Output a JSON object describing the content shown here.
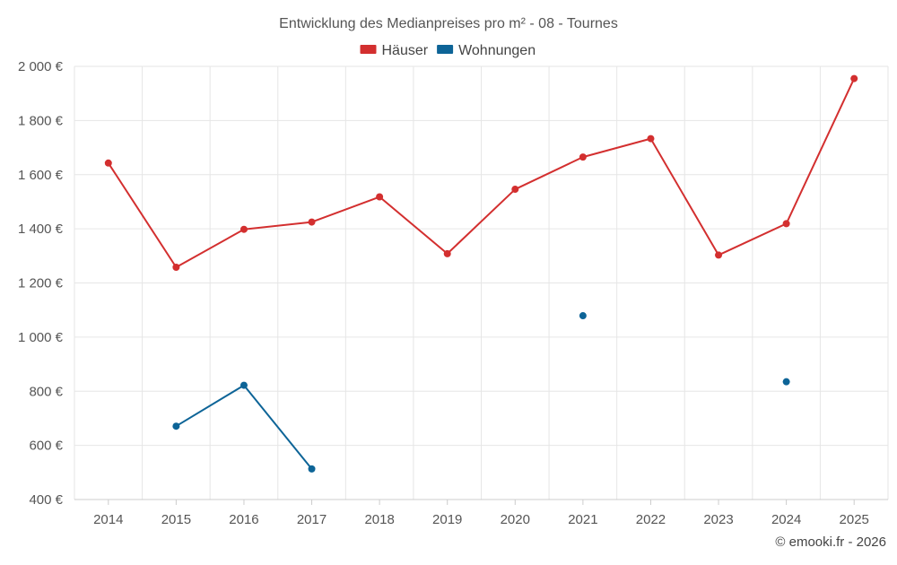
{
  "chart_data": {
    "type": "line",
    "title": "Entwicklung des Medianpreises pro m² - 08 - Tournes",
    "categories": [
      "2014",
      "2015",
      "2016",
      "2017",
      "2018",
      "2019",
      "2020",
      "2021",
      "2022",
      "2023",
      "2024",
      "2025"
    ],
    "ylim": [
      400,
      2000
    ],
    "yticks": [
      400,
      600,
      800,
      1000,
      1200,
      1400,
      1600,
      1800,
      2000
    ],
    "ytick_labels": [
      "400 €",
      "600 €",
      "800 €",
      "1 000 €",
      "1 200 €",
      "1 400 €",
      "1 600 €",
      "1 800 €",
      "2 000 €"
    ],
    "series": [
      {
        "name": "Häuser",
        "color": "#d32f2f",
        "values": [
          1643,
          1258,
          1398,
          1425,
          1518,
          1308,
          1546,
          1665,
          1733,
          1303,
          1419,
          1955
        ]
      },
      {
        "name": "Wohnungen",
        "color": "#0d6497",
        "values": [
          null,
          671,
          822,
          513,
          null,
          null,
          null,
          1079,
          null,
          null,
          835,
          null
        ]
      }
    ],
    "grid": true,
    "legend_position": "top-center",
    "credit": "© emooki.fr - 2026"
  }
}
